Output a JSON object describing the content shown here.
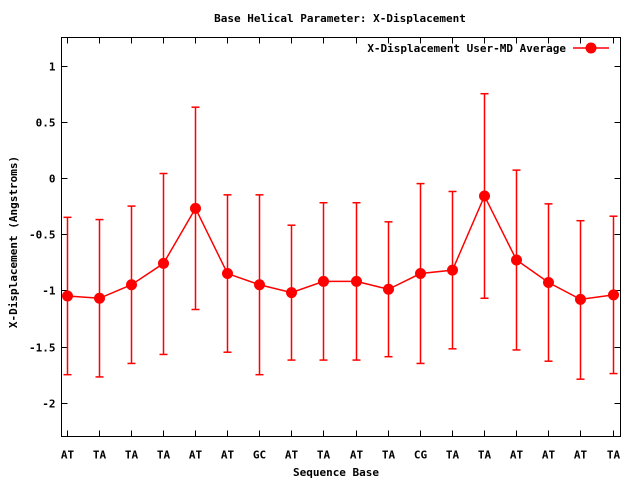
{
  "chart_data": {
    "type": "line",
    "title": "Base  Helical Parameter: X-Displacement",
    "xlabel": "Sequence Base",
    "ylabel": "X-Displacement (Angstroms)",
    "ylim": [
      -2.3,
      1.25
    ],
    "yticks": [
      -2,
      -1.5,
      -1,
      -0.5,
      0,
      0.5,
      1
    ],
    "ytick_labels": [
      "-2",
      "-1.5",
      "-1",
      "-0.5",
      "0",
      "0.5",
      "1"
    ],
    "categories": [
      "AT",
      "TA",
      "TA",
      "TA",
      "AT",
      "AT",
      "GC",
      "AT",
      "TA",
      "AT",
      "TA",
      "CG",
      "TA",
      "TA",
      "AT",
      "AT",
      "AT",
      "TA"
    ],
    "grid": false,
    "legend_position": "top-right",
    "series": [
      {
        "name": "X-Displacement User-MD Average",
        "color": "#ff0000",
        "values": [
          -1.05,
          -1.07,
          -0.95,
          -0.76,
          -0.27,
          -0.85,
          -0.95,
          -1.02,
          -0.92,
          -0.92,
          -0.99,
          -0.85,
          -0.82,
          -0.16,
          -0.73,
          -0.93,
          -1.08,
          -1.04
        ],
        "err_low": [
          -1.75,
          -1.77,
          -1.65,
          -1.57,
          -1.17,
          -1.55,
          -1.75,
          -1.62,
          -1.62,
          -1.62,
          -1.59,
          -1.65,
          -1.52,
          -1.07,
          -1.53,
          -1.63,
          -1.79,
          -1.74
        ],
        "err_high": [
          -0.35,
          -0.37,
          -0.25,
          0.04,
          0.63,
          -0.15,
          -0.15,
          -0.42,
          -0.22,
          -0.22,
          -0.39,
          -0.05,
          -0.12,
          0.75,
          0.07,
          -0.23,
          -0.38,
          -0.34
        ]
      }
    ]
  }
}
